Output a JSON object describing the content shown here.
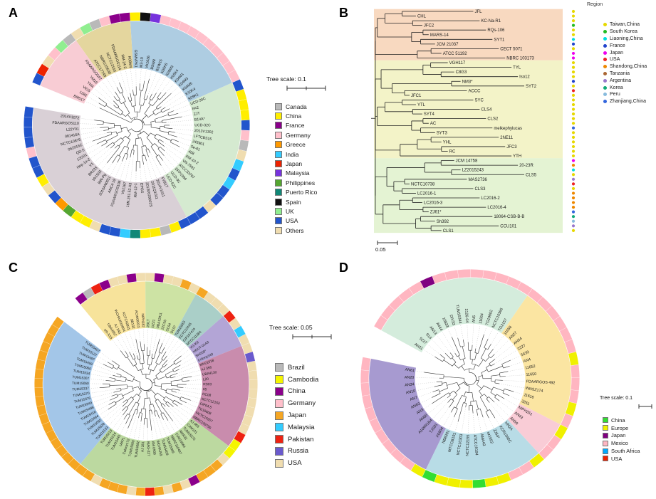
{
  "panelA": {
    "letter": "A",
    "tree_scale_label": "Tree scale: 0.1",
    "legend": [
      {
        "label": "Canada",
        "color": "#b9b9b9"
      },
      {
        "label": "China",
        "color": "#ffee00"
      },
      {
        "label": "France",
        "color": "#8b008b"
      },
      {
        "label": "Germany",
        "color": "#ffc0cb"
      },
      {
        "label": "Greece",
        "color": "#ff9900"
      },
      {
        "label": "India",
        "color": "#33ccff"
      },
      {
        "label": "Japan",
        "color": "#ee2200"
      },
      {
        "label": "Malaysia",
        "color": "#7733dd"
      },
      {
        "label": "Philippines",
        "color": "#55a630"
      },
      {
        "label": "Puerto Rico",
        "color": "#118877"
      },
      {
        "label": "Spain",
        "color": "#111111"
      },
      {
        "label": "UK",
        "color": "#90ee90"
      },
      {
        "label": "USA",
        "color": "#2255cc"
      },
      {
        "label": "Others",
        "color": "#f0ddb0"
      }
    ],
    "sectors": [
      {
        "from": 0,
        "to": 23,
        "color": "#d9d0d6"
      },
      {
        "from": 24,
        "to": 39,
        "color": "#d5ead0"
      },
      {
        "from": 40,
        "to": 52,
        "color": "#aecde2"
      },
      {
        "from": 53,
        "to": 58,
        "color": "#e4d69e"
      },
      {
        "from": 59,
        "to": 64,
        "color": "#f8ccd4"
      }
    ],
    "tips": [
      [
        "2014V1072",
        "#2255cc"
      ],
      [
        "FDAARGOS110",
        "#2255cc"
      ],
      [
        "L22Y01",
        "#2255cc"
      ],
      [
        "081416A",
        "#2255cc"
      ],
      [
        "NCTC10875",
        "#ffc0cb"
      ],
      [
        "062916C",
        "#2255cc"
      ],
      [
        "QD-5",
        "#2255cc"
      ],
      [
        "12G01",
        "#ffee00"
      ],
      [
        "Hep-1a-2",
        "#f0ddb0"
      ],
      [
        "V1",
        "#2255cc"
      ],
      [
        "BR233",
        "#ff9900"
      ],
      [
        "Vb1503",
        "#55a630"
      ],
      [
        "BtN-Pg",
        "#ffee00"
      ],
      [
        "2015AN0011",
        "#ffee00"
      ],
      [
        "ANC4-19",
        "#f0ddb0"
      ],
      [
        "FDAARGOS108",
        "#2255cc"
      ],
      [
        "Vb1167",
        "#2255cc"
      ],
      [
        "16N.261.52.A3",
        "#33ccff"
      ],
      [
        "RM-12-1",
        "#118877"
      ],
      [
        "EPGS",
        "#ffee00"
      ],
      [
        "20130629002S",
        "#ffee00"
      ],
      [
        "2011Q1011",
        "#b9b9b9"
      ],
      [
        "2014V1011",
        "#ffee00"
      ],
      [
        "FVB17",
        "#2255cc"
      ],
      [
        "UCD-52C",
        "#2255cc"
      ],
      [
        "UCD-9C",
        "#2255cc"
      ],
      [
        "DFP1994",
        "#f0ddb0"
      ],
      [
        "ATCC33787",
        "#2255cc"
      ],
      [
        "VN-7501",
        "#2255cc"
      ],
      [
        "RM-10-2",
        "#33ccff"
      ],
      [
        "408",
        "#2255cc"
      ],
      [
        "Se-61",
        "#33ccff"
      ],
      [
        "243901",
        "#f0ddb0"
      ],
      [
        "LFTCBS15",
        "#b9b9b9"
      ],
      [
        "2013V1302",
        "#ffc0cb"
      ],
      [
        "UCD-32C",
        "#2255cc"
      ],
      [
        "B1VA*",
        "#ffee00"
      ],
      [
        "ZJT",
        "#ffee00"
      ],
      [
        "FA2",
        "#ffee00"
      ],
      [
        "UCD-30C",
        "#2255cc"
      ],
      [
        "K09K1",
        "#ffc0cb"
      ],
      [
        "K10K4",
        "#ffc0cb"
      ],
      [
        "K04M5",
        "#ffc0cb"
      ],
      [
        "K04M3",
        "#ffc0cb"
      ],
      [
        "K04M1",
        "#ffc0cb"
      ],
      [
        "K05K4",
        "#ffc0cb"
      ],
      [
        "K09M3",
        "#ffc0cb"
      ],
      [
        "K05K5",
        "#ffc0cb"
      ],
      [
        "BSW15",
        "#ffc0cb"
      ],
      [
        "BSW8",
        "#ffc0cb"
      ],
      [
        "Vb1636",
        "#7733dd"
      ],
      [
        "M3-10",
        "#111111"
      ],
      [
        "GSMVPK1",
        "#ffee00"
      ],
      [
        "K08M4",
        "#8b008b"
      ],
      [
        "RM-24-2",
        "#8b008b"
      ],
      [
        "FDAARGOS114",
        "#ffc0cb"
      ],
      [
        "NCTC12160",
        "#b9b9b9"
      ],
      [
        "NBRC15630",
        "#90ee90"
      ],
      [
        "ATCC17749",
        "#f0ddb0"
      ],
      [
        "FDAARGOS97",
        "#b9b9b9"
      ],
      [
        "YM19",
        "#90ee90"
      ],
      [
        "YM4",
        "#ffc0cb"
      ],
      [
        "VIO5",
        "#f0ddb0"
      ],
      [
        "1382",
        "#ee2200"
      ],
      [
        "BM517",
        "#2255cc"
      ]
    ]
  },
  "panelB": {
    "letter": "B",
    "region_header": "Region",
    "scale_label": "0.05",
    "legend": [
      {
        "label": "Taiwan,China",
        "color": "#e6d800"
      },
      {
        "label": "South Korea",
        "color": "#22bb22"
      },
      {
        "label": "Liaoning,China",
        "color": "#00dddd"
      },
      {
        "label": "France",
        "color": "#2244cc"
      },
      {
        "label": "Japan",
        "color": "#ee00ee"
      },
      {
        "label": "USA",
        "color": "#ee2222"
      },
      {
        "label": "Shandong,China",
        "color": "#ee8800"
      },
      {
        "label": "Tanzania",
        "color": "#aa6633"
      },
      {
        "label": "Argentina",
        "color": "#9977cc"
      },
      {
        "label": "Korea",
        "color": "#11aa77"
      },
      {
        "label": "Peru",
        "color": "#88bbdd"
      },
      {
        "label": "Zhanjiang,China",
        "color": "#3366dd"
      }
    ],
    "clades": [
      {
        "bg": "#f8d9c0",
        "tips": [
          [
            "JFL",
            "#e6d800"
          ],
          [
            "CHL",
            "#e6d800"
          ],
          [
            "KC-Na-R1",
            "#e6d800"
          ],
          [
            "JFC2",
            "#22bb22"
          ],
          [
            "RQs-106",
            "#e6d800"
          ],
          [
            "MARS-14",
            "#e6d800"
          ],
          [
            "SYT1",
            "#00dddd"
          ],
          [
            "JCM 21037",
            "#2244cc"
          ],
          [
            "CECT 5071",
            "#e6d800"
          ],
          [
            "ATCC 51192",
            "#ee00ee"
          ],
          [
            "NBRC 103173",
            "#ee00ee"
          ]
        ]
      },
      {
        "bg": "#f3f3c8",
        "tips": [
          [
            "VGH117",
            "#e6d800"
          ],
          [
            "TYL",
            "#e6d800"
          ],
          [
            "C8G3",
            "#e6d800"
          ],
          [
            "Iso12",
            "#e6d800"
          ],
          [
            "NM3*",
            "#2244cc"
          ],
          [
            "SYT2",
            "#e6d800"
          ],
          [
            "ACCC",
            "#ee2222"
          ],
          [
            "JFC1",
            "#e6d800"
          ],
          [
            "SYC",
            "#e6d800"
          ],
          [
            "YTL",
            "#e6d800"
          ],
          [
            "CLS4",
            "#e6d800"
          ],
          [
            "SYT4",
            "#e6d800"
          ],
          [
            "CLS2",
            "#e6d800"
          ],
          [
            "AC",
            "#e6d800"
          ],
          [
            "melkephylucas",
            "#3366dd"
          ],
          [
            "SYT3",
            "#e6d800"
          ],
          [
            "2NE11",
            "#e6d800"
          ],
          [
            "YHL",
            "#e6d800"
          ],
          [
            "JFC3",
            "#e6d800"
          ],
          [
            "RC",
            "#e6d800"
          ],
          [
            "YTH",
            "#e6d800"
          ]
        ]
      },
      {
        "bg": "#e4f3d3",
        "tips": [
          [
            "JCM 14758",
            "#ee00ee"
          ],
          [
            "20-23R",
            "#ee8800"
          ],
          [
            "LZ2015243",
            "#00dddd"
          ],
          [
            "CLS5",
            "#e6d800"
          ],
          [
            "MAS2736",
            "#9977cc"
          ],
          [
            "NCTC10738",
            "#ee2222"
          ],
          [
            "CLS3",
            "#e6d800"
          ],
          [
            "LC2016-1",
            "#ee8800"
          ],
          [
            "LC2016-2",
            "#ee8800"
          ],
          [
            "LC2016-3",
            "#ee8800"
          ],
          [
            "LC2016-4",
            "#ee8800"
          ],
          [
            "ZJ61*",
            "#3366dd"
          ],
          [
            "18064-CSB-B-B",
            "#11aa77"
          ],
          [
            "Sh392",
            "#88bbdd"
          ],
          [
            "CCU101",
            "#9977cc"
          ],
          [
            "CLS1",
            "#e6d800"
          ]
        ]
      }
    ]
  },
  "panelC": {
    "letter": "C",
    "tree_scale_label": "Tree scale: 0.05",
    "legend": [
      {
        "label": "Brazil",
        "color": "#b9b9b9"
      },
      {
        "label": "Cambodia",
        "color": "#f5f500"
      },
      {
        "label": "China",
        "color": "#8b008b"
      },
      {
        "label": "Germany",
        "color": "#ffc0cb"
      },
      {
        "label": "Japan",
        "color": "#f5a623"
      },
      {
        "label": "Malaysia",
        "color": "#33ccff"
      },
      {
        "label": "Pakistan",
        "color": "#ee2211"
      },
      {
        "label": "Russia",
        "color": "#6a5acd"
      },
      {
        "label": "USA",
        "color": "#f0ddb0"
      }
    ],
    "sectors": [
      {
        "from": 0,
        "to": 7,
        "color": "#f7e39b"
      },
      {
        "from": 8,
        "to": 13,
        "color": "#cde3a4"
      },
      {
        "from": 14,
        "to": 17,
        "color": "#aacfc8"
      },
      {
        "from": 18,
        "to": 21,
        "color": "#b3a5d6"
      },
      {
        "from": 22,
        "to": 33,
        "color": "#c98cad"
      },
      {
        "from": 34,
        "to": 52,
        "color": "#bcd9a0"
      },
      {
        "from": 53,
        "to": 70,
        "color": "#a3c6e8"
      }
    ],
    "tips": [
      [
        "tzh-X15",
        "#8b008b"
      ],
      [
        "UBA4557",
        "#b9b9b9"
      ],
      [
        "AJ 243",
        "#ee2211"
      ],
      [
        "WCHAJ010004",
        "#8b008b"
      ],
      [
        "KCTC42811",
        "#f0ddb0"
      ],
      [
        "9B132",
        "#f0ddb0"
      ],
      [
        "ACIN00223",
        "#8b008b"
      ],
      [
        "NIPH182",
        "#f0ddb0"
      ],
      [
        "2DLT",
        "#f0ddb0"
      ],
      [
        "DZ21",
        "#8b008b"
      ],
      [
        "UBA12911",
        "#f0ddb0"
      ],
      [
        "22C3S",
        "#f0ddb0"
      ],
      [
        "SC54",
        "#f5a623"
      ],
      [
        "SC57",
        "#f0ddb0"
      ],
      [
        "TUM15553",
        "#f5a623"
      ],
      [
        "KCTC12416",
        "#f0ddb0"
      ],
      [
        "CIP107470",
        "#f0ddb0"
      ],
      [
        "MTCC11364",
        "#f0ddb0"
      ],
      [
        "YG-K9",
        "#ee2211"
      ],
      [
        "HGUT-01A3",
        "#f0ddb0"
      ],
      [
        "SH205*",
        "#33ccff"
      ],
      [
        "Colony140",
        "#f0ddb0"
      ],
      [
        "MH21018",
        "#f0ddb0"
      ],
      [
        "AJ 356",
        "#6a5acd"
      ],
      [
        "UBA4130",
        "#f0ddb0"
      ],
      [
        "L20",
        "#f0ddb0"
      ],
      [
        "RS03",
        "#f0ddb0"
      ],
      [
        "65",
        "#f0ddb0"
      ],
      [
        "RC08",
        "#f0ddb0"
      ],
      [
        "NCTC12153",
        "#f0ddb0"
      ],
      [
        "CIP64.5",
        "#f0ddb0"
      ],
      [
        "TG19608",
        "#f0ddb0"
      ],
      [
        "NCTC10307",
        "#ee2211"
      ],
      [
        "NBRC109759",
        "#f5f500"
      ],
      [
        "AJ 068",
        "#f5f500"
      ],
      [
        "CAM121",
        "#f0ddb0"
      ],
      [
        "TUM15570",
        "#f5a623"
      ],
      [
        "AMA32",
        "#f5a623"
      ],
      [
        "TUM15564",
        "#f5a623"
      ],
      [
        "NBRC110497",
        "#8b008b"
      ],
      [
        "TUM15069",
        "#f0ddb0"
      ],
      [
        "TUM15409",
        "#f5a623"
      ],
      [
        "WCHAJ59",
        "#f0ddb0"
      ],
      [
        "AM 0908",
        "#f5a623"
      ],
      [
        "MAG-227",
        "#ee2211"
      ],
      [
        "AJ 351",
        "#f5a623"
      ],
      [
        "TUM15082",
        "#f0ddb0"
      ],
      [
        "TUM15500",
        "#f5a623"
      ],
      [
        "Colony172",
        "#f5a623"
      ],
      [
        "UWTL",
        "#f5a623"
      ],
      [
        "TUM15445",
        "#f0ddb0"
      ],
      [
        "TUM15214",
        "#f5a623"
      ],
      [
        "TUM15213",
        "#f5a623"
      ],
      [
        "TUM15133",
        "#f5a623"
      ],
      [
        "TUM15528",
        "#f5a623"
      ],
      [
        "TUM15092",
        "#f5a623"
      ],
      [
        "TUM15494",
        "#f5a623"
      ],
      [
        "TUM15410",
        "#f5a623"
      ],
      [
        "TUM15498",
        "#f5a623"
      ],
      [
        "TUM15349",
        "#f5a623"
      ],
      [
        "TUM15376",
        "#f5a623"
      ],
      [
        "TUM15270",
        "#f5a623"
      ],
      [
        "TUM15337",
        "#f5a623"
      ],
      [
        "TUM15050",
        "#f5a623"
      ],
      [
        "TUM15307",
        "#f5a623"
      ],
      [
        "TUM15534",
        "#f5a623"
      ],
      [
        "TUM15060",
        "#f5a623"
      ],
      [
        "TUM15499",
        "#f5a623"
      ],
      [
        "TUM15497",
        "#f5a623"
      ],
      [
        "TUM15127",
        "#f5a623"
      ],
      [
        "TUM15407",
        "#f5a623"
      ]
    ]
  },
  "panelD": {
    "letter": "D",
    "tree_scale_label": "Tree scale: 0.1",
    "legend": [
      {
        "label": "China",
        "color": "#33dd33"
      },
      {
        "label": "Europe",
        "color": "#f0f000"
      },
      {
        "label": "Japan",
        "color": "#800080"
      },
      {
        "label": "Mexico",
        "color": "#ffb6c1"
      },
      {
        "label": "South Africa",
        "color": "#00aaff"
      },
      {
        "label": "USA",
        "color": "#ee2200"
      }
    ],
    "sectors": [
      {
        "from": 0,
        "to": 13,
        "color": "#d4ecdc"
      },
      {
        "from": 14,
        "to": 25,
        "color": "#fbe5a2"
      },
      {
        "from": 26,
        "to": 28,
        "color": "#f9ccd6"
      },
      {
        "from": 29,
        "to": 38,
        "color": "#b8dce6"
      },
      {
        "from": 39,
        "to": 49,
        "color": "#a79ad0"
      }
    ],
    "tips": [
      [
        "AN11",
        "#ffb6c1"
      ],
      [
        "5227",
        "#ffb6c1"
      ],
      [
        "914",
        "#ffb6c1"
      ],
      [
        "AN13",
        "#ffb6c1"
      ],
      [
        "A444",
        "#ffb6c1"
      ],
      [
        "10833",
        "#800080"
      ],
      [
        "DIV33",
        "#ffb6c1"
      ],
      [
        "TUM15344",
        "#ffb6c1"
      ],
      [
        "2126-04",
        "#ffb6c1"
      ],
      [
        "AN5",
        "#ffb6c1"
      ],
      [
        "11654",
        "#ffb6c1"
      ],
      [
        "TG19602",
        "#ffb6c1"
      ],
      [
        "NCTC10366",
        "#ffb6c1"
      ],
      [
        "TG2157",
        "#ffb6c1"
      ],
      [
        "11658",
        "#ffb6c1"
      ],
      [
        "AN27",
        "#ffb6c1"
      ],
      [
        "AN54",
        "#ffb6c1"
      ],
      [
        "2227",
        "#ffb6c1"
      ],
      [
        "5439",
        "#ffb6c1"
      ],
      [
        "AN4",
        "#ffb6c1"
      ],
      [
        "11652",
        "#f0f000"
      ],
      [
        "11650",
        "#ffb6c1"
      ],
      [
        "FDAARGOS 492",
        "#ffb6c1"
      ],
      [
        "INNSZ174",
        "#ffb6c1"
      ],
      [
        "11616",
        "#f0f000"
      ],
      [
        "3261",
        "#ffb6c1"
      ],
      [
        "NIPH261",
        "#f0f000"
      ],
      [
        "AN43",
        "#ffb6c1"
      ],
      [
        "AN59",
        "#ffb6c1"
      ],
      [
        "HN2A",
        "#f0f000"
      ],
      [
        "KCR1348C",
        "#ffb6c1"
      ],
      [
        "ZJ54*",
        "#ffb6c1"
      ],
      [
        "sz1652",
        "#f0f000"
      ],
      [
        "AMA43",
        "#f0f000"
      ],
      [
        "ATCC19194",
        "#33dd33"
      ],
      [
        "NCTC12155",
        "#f0f000"
      ],
      [
        "NCTC10303",
        "#f0f000"
      ],
      [
        "MTCCB191",
        "#f0f000"
      ],
      [
        "NB8391",
        "#33dd33"
      ],
      [
        "X0904",
        "#f0f000"
      ],
      [
        "TJS01",
        "#ffb6c1"
      ],
      [
        "A109R1B4",
        "#ffb6c1"
      ],
      [
        "AN60",
        "#ffb6c1"
      ],
      [
        "AN3",
        "#ffb6c1"
      ],
      [
        "AN63",
        "#ffb6c1"
      ],
      [
        "AN7",
        "#ffb6c1"
      ],
      [
        "AN10",
        "#ffb6c1"
      ],
      [
        "AN34",
        "#ffb6c1"
      ],
      [
        "AN20",
        "#ffb6c1"
      ],
      [
        "AN61",
        "#ffb6c1"
      ]
    ]
  }
}
